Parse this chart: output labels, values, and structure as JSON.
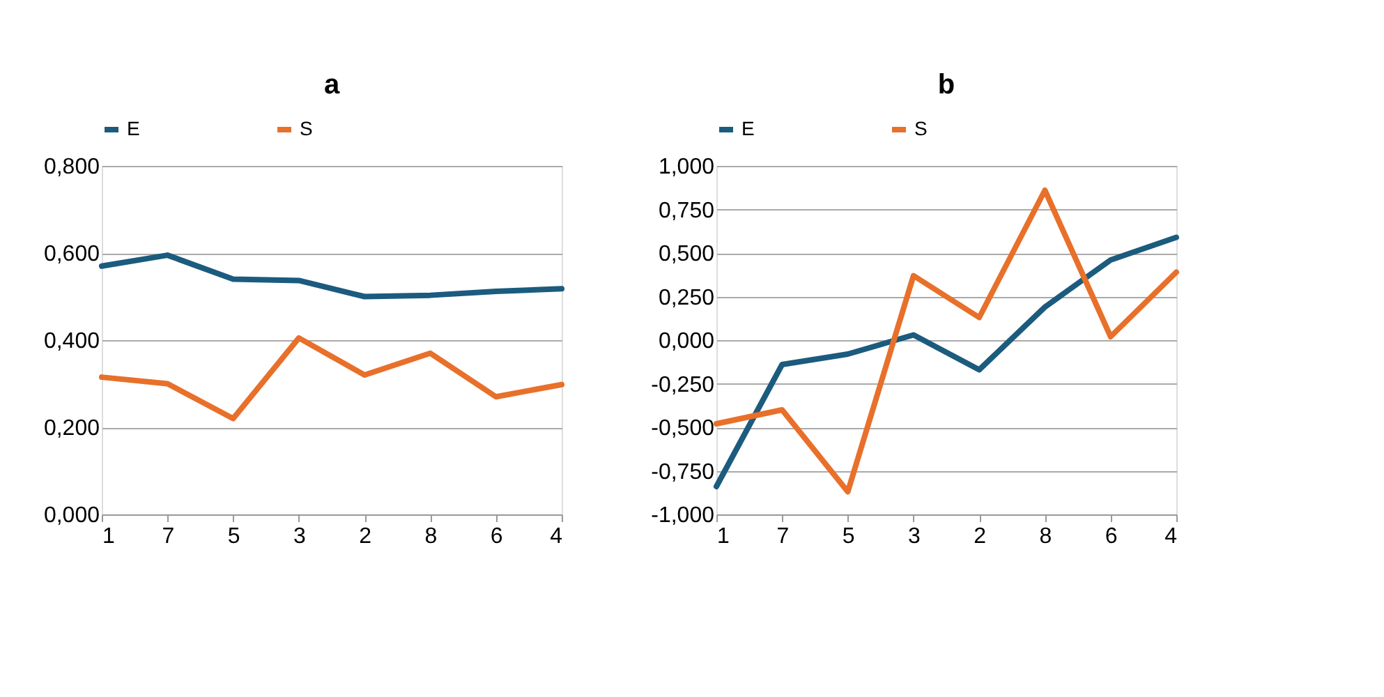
{
  "chart_data": [
    {
      "type": "line",
      "title": "a",
      "categories": [
        "1",
        "7",
        "5",
        "3",
        "2",
        "8",
        "6",
        "4"
      ],
      "series": [
        {
          "name": "E",
          "color": "#1b5b7e",
          "values": [
            0.57,
            0.595,
            0.54,
            0.537,
            0.5,
            0.503,
            0.512,
            0.518
          ]
        },
        {
          "name": "S",
          "color": "#e8702a",
          "values": [
            0.315,
            0.3,
            0.22,
            0.405,
            0.32,
            0.37,
            0.27,
            0.298
          ]
        }
      ],
      "ylim": [
        0,
        0.8
      ],
      "yticks": [
        {
          "value": 0,
          "label": "0,000"
        },
        {
          "value": 0.2,
          "label": "0,200"
        },
        {
          "value": 0.4,
          "label": "0,400"
        },
        {
          "value": 0.6,
          "label": "0,600"
        },
        {
          "value": 0.8,
          "label": "0,800"
        }
      ],
      "grid": "y",
      "legend": "top",
      "marker": "none",
      "line_style": "solid"
    },
    {
      "type": "line",
      "title": "b",
      "categories": [
        "1",
        "7",
        "5",
        "3",
        "2",
        "8",
        "6",
        "4"
      ],
      "series": [
        {
          "name": "E",
          "color": "#1b5b7e",
          "values": [
            -0.84,
            -0.14,
            -0.08,
            0.03,
            -0.17,
            0.19,
            0.46,
            0.59
          ]
        },
        {
          "name": "S",
          "color": "#e8702a",
          "values": [
            -0.48,
            -0.4,
            -0.87,
            0.37,
            0.13,
            0.86,
            0.02,
            0.39
          ]
        }
      ],
      "ylim": [
        -1,
        1
      ],
      "yticks": [
        {
          "value": -1,
          "label": "-1,000"
        },
        {
          "value": -0.75,
          "label": "-0,750"
        },
        {
          "value": -0.5,
          "label": "-0,500"
        },
        {
          "value": -0.25,
          "label": "-0,250"
        },
        {
          "value": 0,
          "label": "0,000"
        },
        {
          "value": 0.25,
          "label": "0,250"
        },
        {
          "value": 0.5,
          "label": "0,500"
        },
        {
          "value": 0.75,
          "label": "0,750"
        },
        {
          "value": 1,
          "label": "1,000"
        }
      ],
      "grid": "y",
      "legend": "top",
      "marker": "none",
      "line_style": "solid"
    }
  ]
}
